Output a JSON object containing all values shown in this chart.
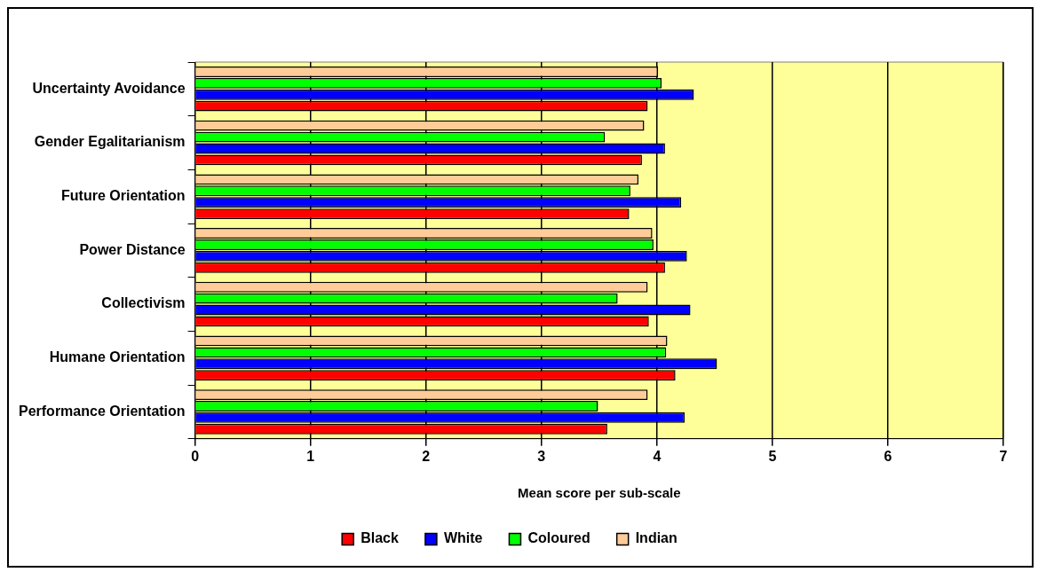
{
  "chart_data": {
    "type": "bar",
    "orientation": "horizontal",
    "xlabel": "Mean score per sub-scale",
    "categories": [
      "Uncertainty Avoidance",
      "Gender Egalitarianism",
      "Future Orientation",
      "Power Distance",
      "Collectivism",
      "Humane Orientation",
      "Performance Orientation"
    ],
    "series": [
      {
        "name": "Black",
        "color": "#ff0000",
        "values": [
          3.92,
          3.87,
          3.76,
          4.07,
          3.93,
          4.16,
          3.57
        ]
      },
      {
        "name": "White",
        "color": "#0000ff",
        "values": [
          4.32,
          4.07,
          4.21,
          4.26,
          4.29,
          4.52,
          4.24
        ]
      },
      {
        "name": "Coloured",
        "color": "#00ff00",
        "values": [
          4.04,
          3.55,
          3.77,
          3.97,
          3.66,
          4.08,
          3.49
        ]
      },
      {
        "name": "Indian",
        "color": "#ffcc99",
        "values": [
          4.01,
          3.89,
          3.84,
          3.96,
          3.92,
          4.09,
          3.92
        ]
      }
    ],
    "xlim": [
      0,
      7
    ],
    "xticks": [
      0,
      1,
      2,
      3,
      4,
      5,
      6,
      7
    ],
    "grid": "x",
    "legend": "bottom"
  }
}
